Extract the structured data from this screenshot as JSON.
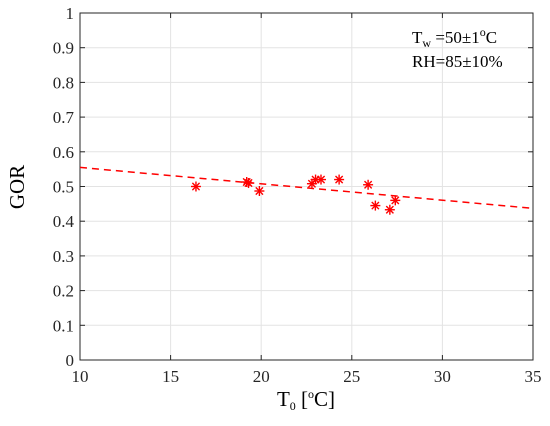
{
  "chart_data": {
    "type": "scatter",
    "xlabel": {
      "main": "T",
      "sub": "0",
      "pre": " [",
      "sup": "o",
      "post": "C]"
    },
    "ylabel": "GOR",
    "xlim": [
      10,
      35
    ],
    "ylim": [
      0,
      1
    ],
    "xticks": [
      10,
      15,
      20,
      25,
      30,
      35
    ],
    "yticks": [
      0,
      0.1,
      0.2,
      0.3,
      0.4,
      0.5,
      0.6,
      0.7,
      0.8,
      0.9,
      1
    ],
    "ytick_labels": [
      "0",
      "0.1",
      "0.2",
      "0.3",
      "0.4",
      "0.5",
      "0.6",
      "0.7",
      "0.8",
      "0.9",
      "1"
    ],
    "grid": true,
    "marker": "*",
    "color": "#ff0000",
    "points": [
      {
        "x": 16.4,
        "y": 0.5
      },
      {
        "x": 19.2,
        "y": 0.513
      },
      {
        "x": 19.3,
        "y": 0.51
      },
      {
        "x": 19.9,
        "y": 0.487
      },
      {
        "x": 22.8,
        "y": 0.508
      },
      {
        "x": 23.0,
        "y": 0.52
      },
      {
        "x": 23.3,
        "y": 0.52
      },
      {
        "x": 24.3,
        "y": 0.52
      },
      {
        "x": 25.9,
        "y": 0.505
      },
      {
        "x": 26.3,
        "y": 0.445
      },
      {
        "x": 27.1,
        "y": 0.433
      },
      {
        "x": 27.4,
        "y": 0.46
      }
    ],
    "trendline": {
      "style": "dashed",
      "x": [
        10,
        35
      ],
      "y": [
        0.555,
        0.437
      ]
    },
    "annotations": [
      {
        "main": "T",
        "sub": "w",
        "rest": " =50±1",
        "sup": "o",
        "post": "C"
      },
      {
        "text": "RH=85±10%"
      }
    ]
  }
}
